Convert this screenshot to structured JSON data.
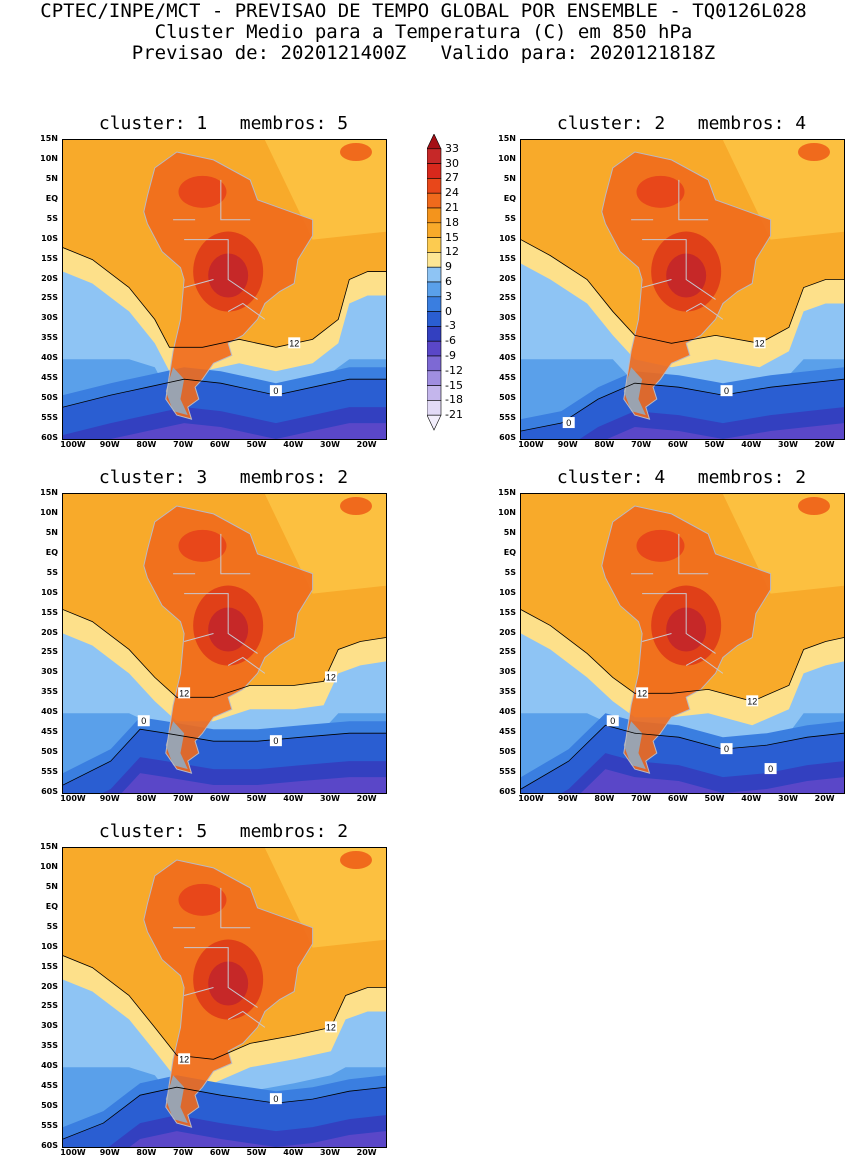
{
  "header": {
    "line1": "CPTEC/INPE/MCT - PREVISAO DE TEMPO GLOBAL POR ENSEMBLE - TQ0126L028",
    "line2": "Cluster Medio para a Temperatura (C) em 850 hPa",
    "line3": "Previsao de: 2020121400Z   Valido para: 2020121818Z"
  },
  "panels": [
    {
      "title": "cluster: 1   membros: 5",
      "contour_labels": [
        "12",
        "0"
      ]
    },
    {
      "title": "cluster: 2   membros: 4",
      "contour_labels": [
        "12",
        "0",
        "0"
      ]
    },
    {
      "title": "cluster: 3   membros: 2",
      "contour_labels": [
        "12",
        "12",
        "0",
        "0"
      ]
    },
    {
      "title": "cluster: 4   membros: 2",
      "contour_labels": [
        "12",
        "12",
        "0",
        "0",
        "0"
      ]
    },
    {
      "title": "cluster: 5   membros: 2",
      "contour_labels": [
        "12",
        "12",
        "0"
      ]
    }
  ],
  "axes": {
    "lat_ticks": [
      "15N",
      "10N",
      "5N",
      "EQ",
      "5S",
      "10S",
      "15S",
      "20S",
      "25S",
      "30S",
      "35S",
      "40S",
      "45S",
      "50S",
      "55S",
      "60S"
    ],
    "lon_ticks": [
      "100W",
      "90W",
      "80W",
      "70W",
      "60W",
      "50W",
      "40W",
      "30W",
      "20W"
    ]
  },
  "colorbar": {
    "levels": [
      "33",
      "30",
      "27",
      "24",
      "21",
      "18",
      "15",
      "12",
      "9",
      "6",
      "3",
      "0",
      "-3",
      "-6",
      "-9",
      "-12",
      "-15",
      "-18",
      "-21"
    ],
    "colors": [
      "#a50f15",
      "#c62828",
      "#d8281c",
      "#e8471a",
      "#f06a1c",
      "#f4941c",
      "#f8aa2a",
      "#fccb50",
      "#fde694",
      "#8ec4f4",
      "#5aa0ea",
      "#3a7ee0",
      "#2a5ed2",
      "#3340c0",
      "#5a47c8",
      "#7d69d4",
      "#a08ee0",
      "#c4b6ec",
      "#e2daf6",
      "#f2eefb"
    ]
  }
}
